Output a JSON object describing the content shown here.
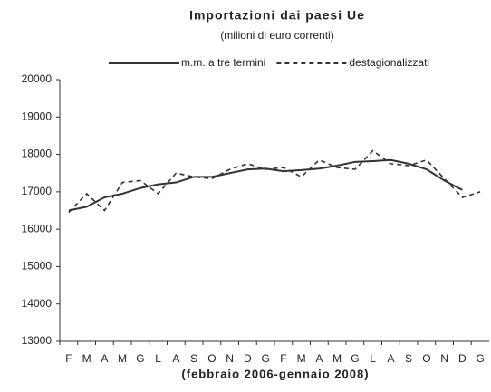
{
  "chart_data": {
    "type": "line",
    "title": "Importazioni dai paesi Ue",
    "subtitle": "(milioni di euro correnti)",
    "x_label": "(febbraio 2006-gennaio 2008)",
    "categories": [
      "F",
      "M",
      "A",
      "M",
      "G",
      "L",
      "A",
      "S",
      "O",
      "N",
      "D",
      "G",
      "F",
      "M",
      "A",
      "M",
      "G",
      "L",
      "A",
      "S",
      "O",
      "N",
      "D",
      "G"
    ],
    "series": [
      {
        "name": "m.m. a tre termini",
        "color": "#333333",
        "dash": "solid",
        "values": [
          16500,
          16600,
          16850,
          16950,
          17100,
          17200,
          17250,
          17400,
          17400,
          17500,
          17600,
          17620,
          17550,
          17580,
          17620,
          17700,
          17800,
          17820,
          17850,
          17750,
          17600,
          17300,
          17050,
          null
        ]
      },
      {
        "name": "destagionalizzati",
        "color": "#333333",
        "dash": "dashed",
        "values": [
          16450,
          16950,
          16500,
          17250,
          17300,
          16950,
          17500,
          17400,
          17350,
          17600,
          17750,
          17600,
          17650,
          17400,
          17850,
          17650,
          17600,
          18100,
          17750,
          17700,
          17850,
          17350,
          16850,
          17000
        ]
      }
    ],
    "ylim": [
      13000,
      20000
    ],
    "yticks": [
      13000,
      14000,
      15000,
      16000,
      17000,
      18000,
      19000,
      20000
    ],
    "grid": false,
    "legend": "top"
  }
}
